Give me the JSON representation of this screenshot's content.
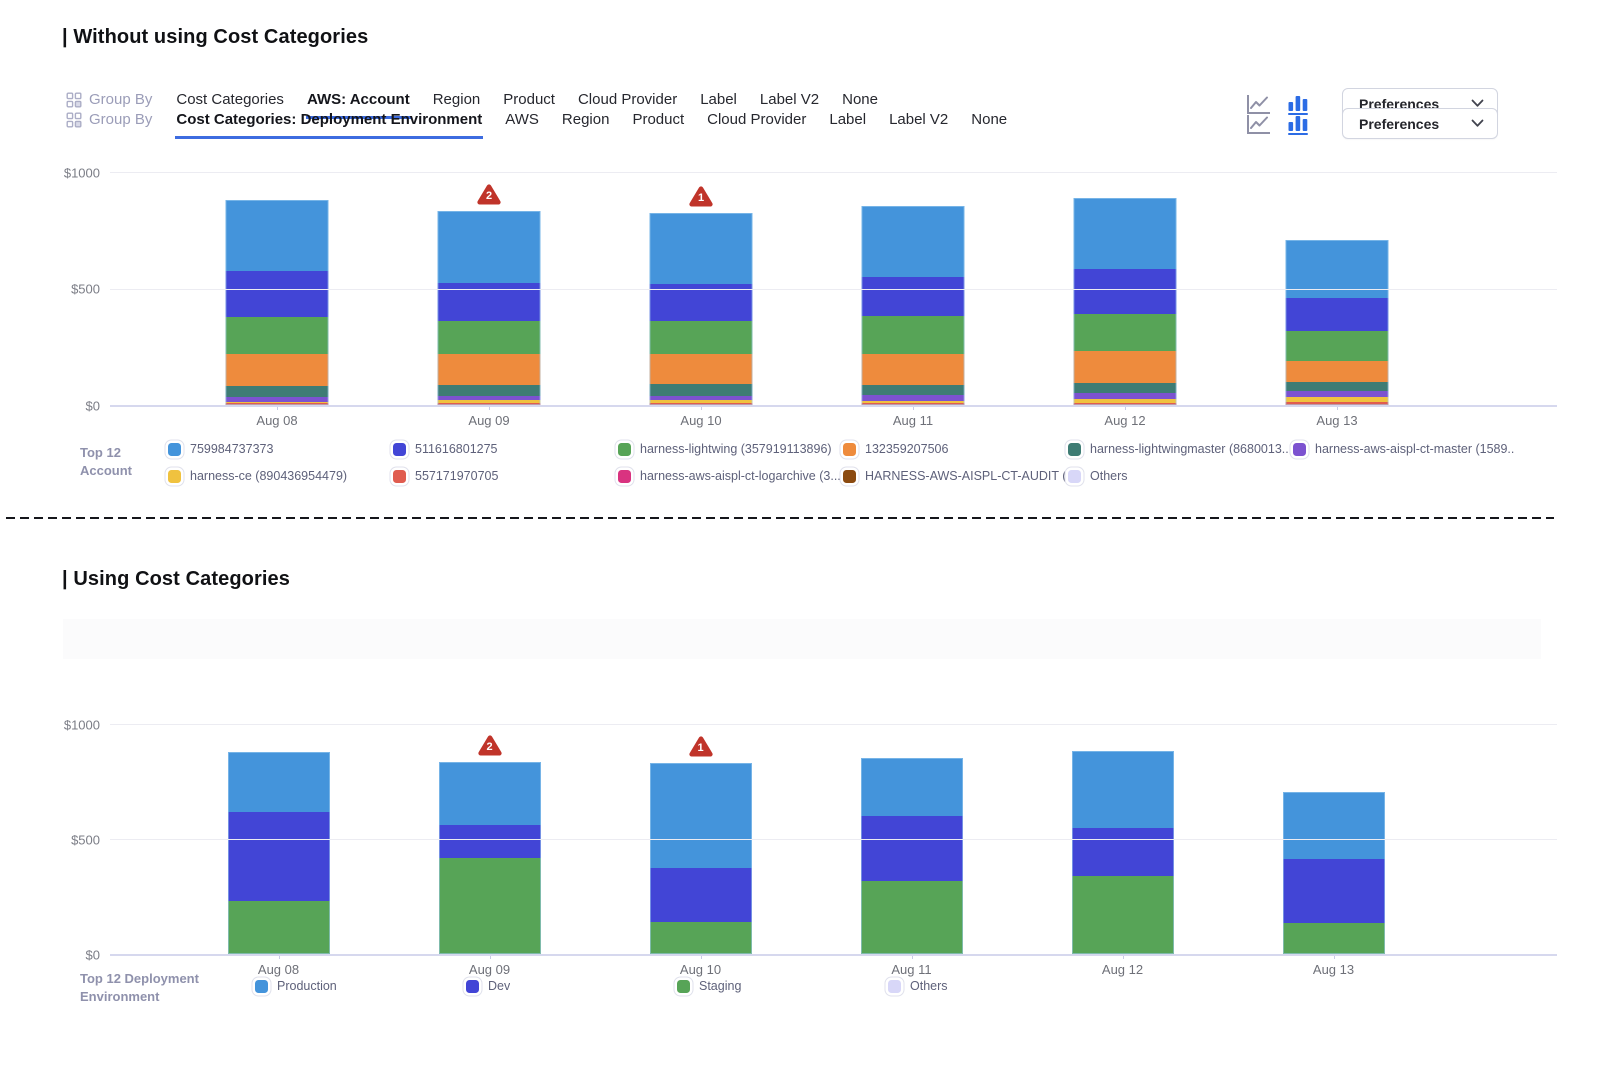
{
  "divider": {
    "style": "dashed"
  },
  "sections": [
    {
      "title": "| Without using Cost Categories",
      "toolbar": {
        "group_by": "Group By",
        "tabs": [
          "Cost Categories",
          "AWS: Account",
          "Region",
          "Product",
          "Cloud Provider",
          "Label",
          "Label V2",
          "None"
        ],
        "active_tab": "AWS: Account",
        "preferences": "Preferences"
      },
      "chart_data": {
        "type": "bar",
        "stacked": true,
        "x": [
          "Aug 08",
          "Aug 09",
          "Aug 10",
          "Aug 11",
          "Aug 12",
          "Aug 13"
        ],
        "y_ticks": [
          "$1000",
          "$500",
          "$0"
        ],
        "ylim": [
          0,
          1000
        ],
        "grid": true,
        "series_bottom_to_top": true,
        "series": [
          {
            "name": "557171970705",
            "color": "#E05C4F",
            "values": [
              7,
              8,
              8,
              9,
              10,
              14
            ]
          },
          {
            "name": "harness-ce (890436954479)",
            "color": "#F0C23F",
            "values": [
              7,
              12,
              12,
              10,
              16,
              22
            ]
          },
          {
            "name": "harness-aws-aispl-ct-master (1589...",
            "color": "#7C52D0",
            "values": [
              20,
              17,
              20,
              23,
              24,
              25
            ]
          },
          {
            "name": "harness-lightwingmaster (8680013...",
            "color": "#3E7C74",
            "values": [
              48,
              47,
              49,
              43,
              46,
              40
            ]
          },
          {
            "name": "132359207506",
            "color": "#EE8B3D",
            "values": [
              138,
              134,
              128,
              133,
              134,
              89
            ]
          },
          {
            "name": "harness-lightwing (357919113896)",
            "color": "#57A457",
            "values": [
              156,
              144,
              144,
              163,
              161,
              129
            ]
          },
          {
            "name": "511616801275",
            "color": "#4245D6",
            "values": [
              200,
              163,
              158,
              169,
              191,
              140
            ]
          },
          {
            "name": "759984737373",
            "color": "#4494DB",
            "values": [
              305,
              306,
              306,
              305,
              305,
              248
            ]
          }
        ],
        "anomalies": [
          {
            "x_index": 1,
            "count": "2"
          },
          {
            "x_index": 2,
            "count": "1"
          }
        ]
      },
      "legend": {
        "title_lines": [
          "Top 12",
          "Account"
        ],
        "items": [
          {
            "label": "759984737373",
            "color": "#4494DB"
          },
          {
            "label": "511616801275",
            "color": "#4245D6"
          },
          {
            "label": "harness-lightwing (357919113896)",
            "color": "#57A457"
          },
          {
            "label": "132359207506",
            "color": "#EE8B3D"
          },
          {
            "label": "harness-lightwingmaster (8680013...",
            "color": "#3E7C74"
          },
          {
            "label": "harness-aws-aispl-ct-master (1589...",
            "color": "#7C52D0"
          },
          {
            "label": "harness-ce (890436954479)",
            "color": "#F0C23F"
          },
          {
            "label": "557171970705",
            "color": "#E05C4F"
          },
          {
            "label": "harness-aws-aispl-ct-logarchive (3...",
            "color": "#D93380"
          },
          {
            "label": "HARNESS-AWS-AISPL-CT-AUDIT (...",
            "color": "#8B4A10"
          },
          {
            "label": "Others",
            "color": "#D8D7F8"
          }
        ]
      }
    },
    {
      "title": "| Using Cost Categories",
      "toolbar": {
        "group_by": "Group By",
        "tabs": [
          "Cost Categories: Deployment Environment",
          "AWS",
          "Region",
          "Product",
          "Cloud Provider",
          "Label",
          "Label V2",
          "None"
        ],
        "active_tab": "Cost Categories: Deployment Environment",
        "preferences": "Preferences"
      },
      "chart_data": {
        "type": "bar",
        "stacked": true,
        "x": [
          "Aug 08",
          "Aug 09",
          "Aug 10",
          "Aug 11",
          "Aug 12",
          "Aug 13"
        ],
        "y_ticks": [
          "$1000",
          "$500",
          "$0"
        ],
        "ylim": [
          0,
          1000
        ],
        "grid": true,
        "series_bottom_to_top": true,
        "series": [
          {
            "name": "Staging",
            "color": "#57A457",
            "values": [
              232,
              416,
              138,
              316,
              340,
              135
            ]
          },
          {
            "name": "Dev",
            "color": "#4245D6",
            "values": [
              384,
              145,
              237,
              282,
              209,
              278
            ]
          },
          {
            "name": "Production",
            "color": "#4494DB",
            "values": [
              264,
              275,
              454,
              253,
              335,
              290
            ]
          }
        ],
        "anomalies": [
          {
            "x_index": 1,
            "count": "2"
          },
          {
            "x_index": 2,
            "count": "1"
          }
        ]
      },
      "legend": {
        "title_lines": [
          "Top 12 Deployment",
          "Environment"
        ],
        "items": [
          {
            "label": "Production",
            "color": "#4494DB"
          },
          {
            "label": "Dev",
            "color": "#4245D6"
          },
          {
            "label": "Staging",
            "color": "#57A457"
          },
          {
            "label": "Others",
            "color": "#D8D7F8"
          }
        ]
      }
    }
  ],
  "colors": {
    "accent_blue": "#3d6ce0",
    "anomaly_red": "#c0342a",
    "grid_line": "#ececf2",
    "axis_line": "#d6d8ee"
  }
}
